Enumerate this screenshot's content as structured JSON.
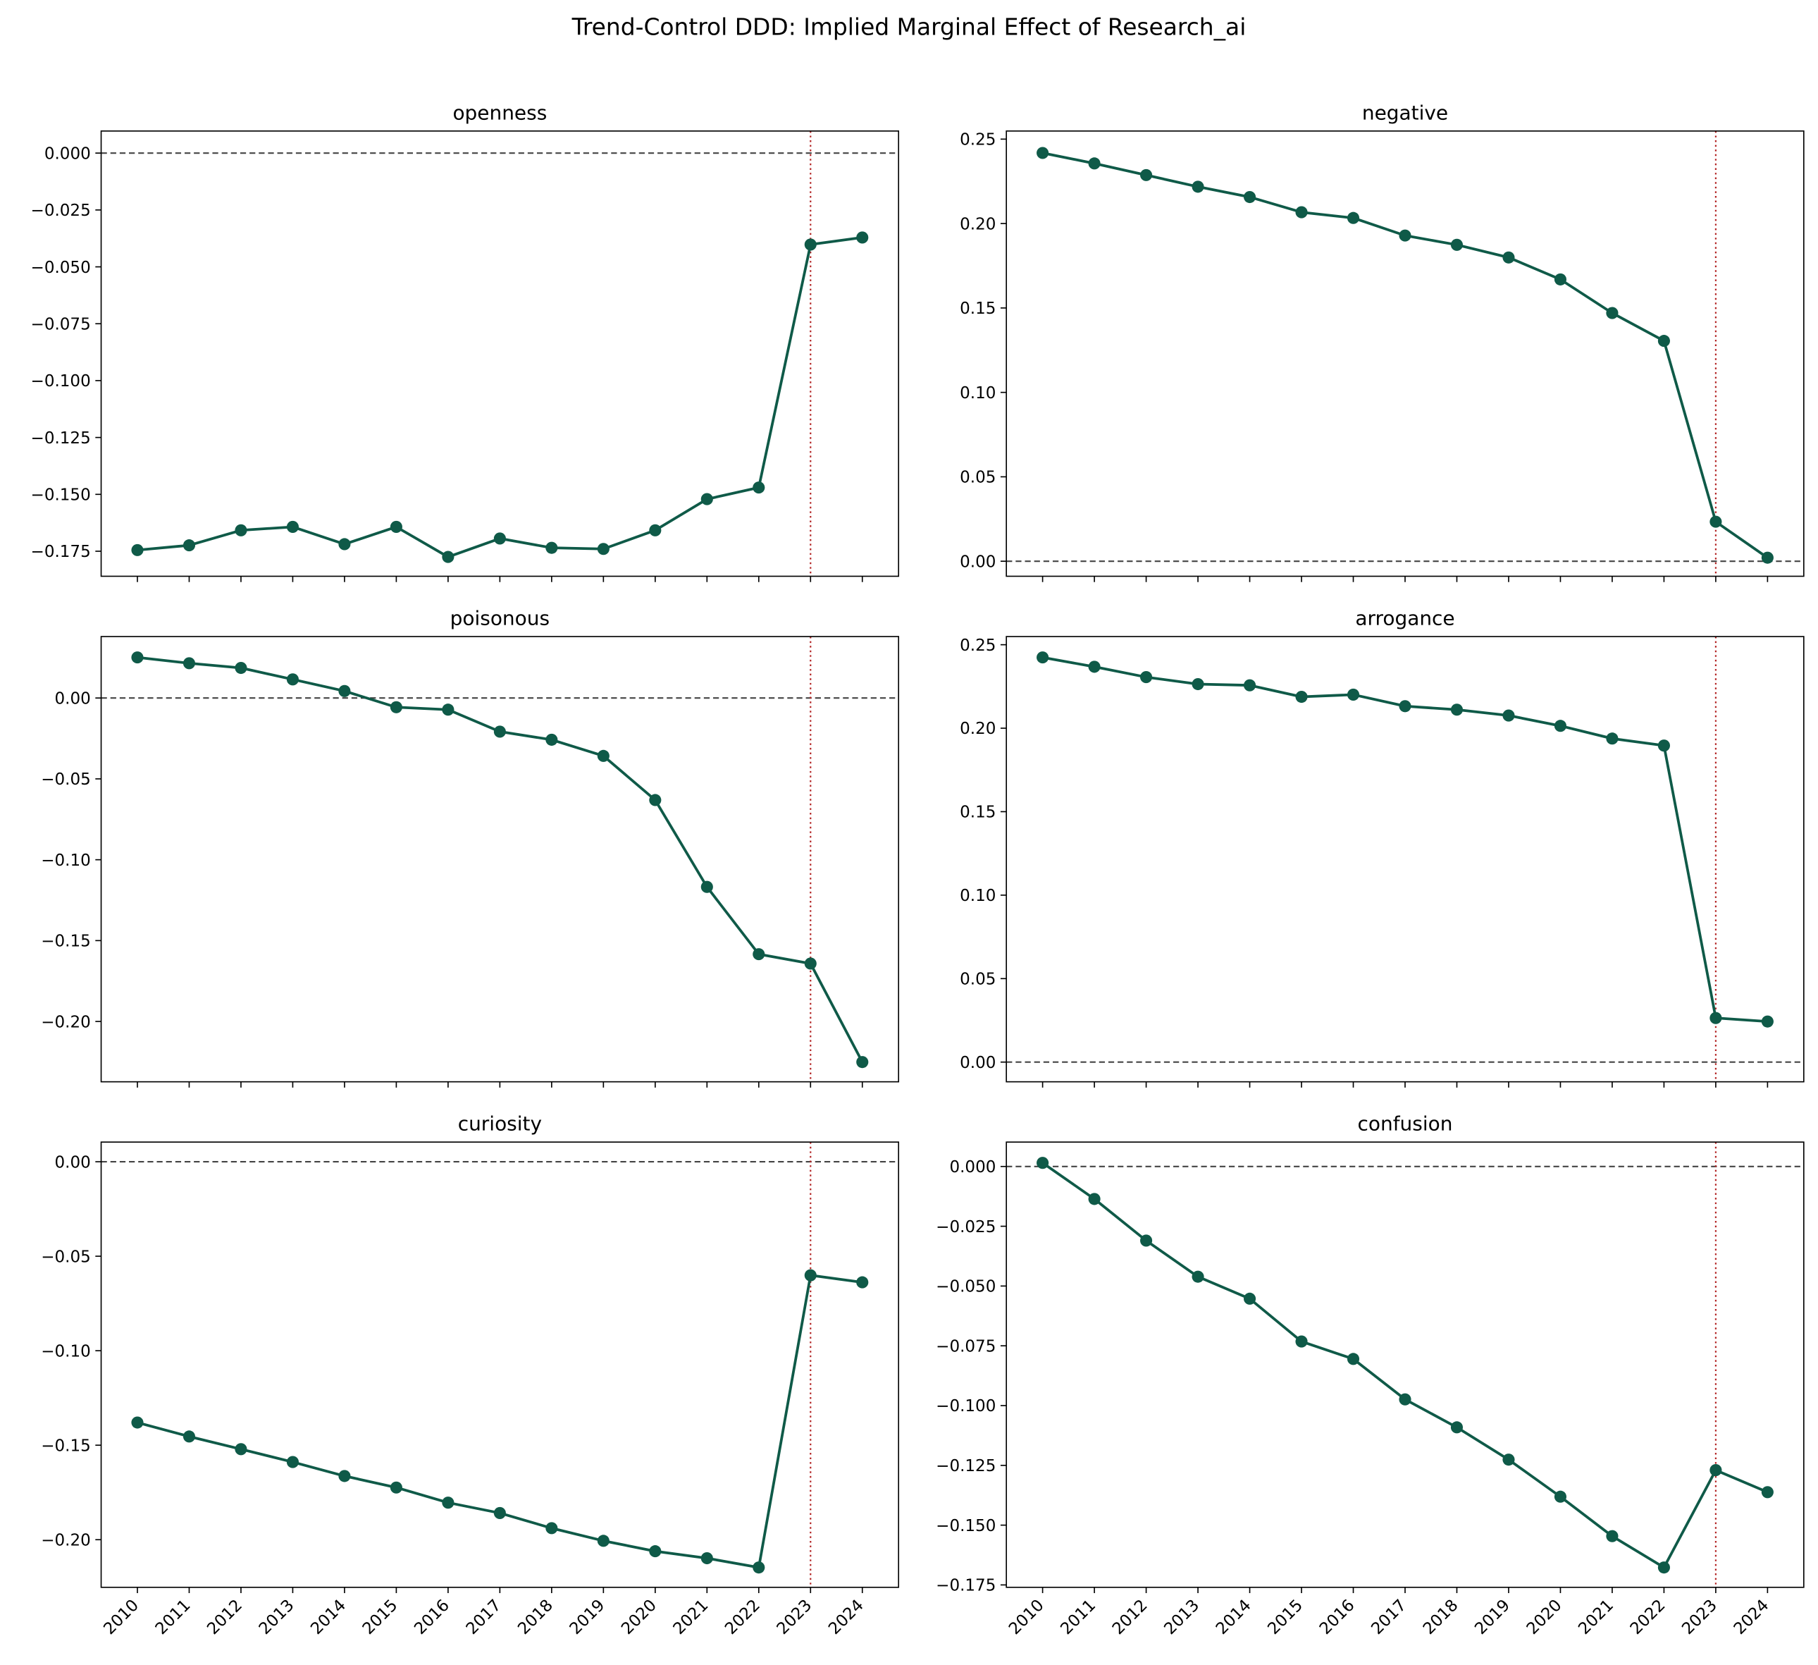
{
  "chart_data": {
    "type": "line",
    "title": "Trend-Control DDD: Implied Marginal Effect of Research_ai",
    "x": [
      2010,
      2011,
      2012,
      2013,
      2014,
      2015,
      2016,
      2017,
      2018,
      2019,
      2020,
      2021,
      2022,
      2023,
      2024
    ],
    "xlim": [
      2009.3,
      2024.7
    ],
    "xticks": [
      2010,
      2011,
      2012,
      2013,
      2014,
      2015,
      2016,
      2017,
      2018,
      2019,
      2020,
      2021,
      2022,
      2023,
      2024
    ],
    "color": "#0f5a48",
    "hline": 0,
    "vline": 2023,
    "vline_color": "#b22222",
    "panels": [
      {
        "title": "openness",
        "values": [
          -0.1745,
          -0.1724,
          -0.1658,
          -0.1643,
          -0.1719,
          -0.1643,
          -0.1775,
          -0.1694,
          -0.1735,
          -0.174,
          -0.1658,
          -0.1521,
          -0.147,
          -0.0402,
          -0.0371
        ],
        "ylim": [
          -0.186,
          0.0097
        ],
        "yticks": [
          {
            "value": 0,
            "label": "0.000"
          },
          {
            "value": -0.025,
            "label": "−0.025"
          },
          {
            "value": -0.05,
            "label": "−0.050"
          },
          {
            "value": -0.075,
            "label": "−0.075"
          },
          {
            "value": -0.1,
            "label": "−0.100"
          },
          {
            "value": -0.125,
            "label": "−0.125"
          },
          {
            "value": -0.15,
            "label": "−0.150"
          },
          {
            "value": -0.175,
            "label": "−0.175"
          }
        ]
      },
      {
        "title": "negative",
        "values": [
          0.2418,
          0.2356,
          0.2287,
          0.2218,
          0.2157,
          0.2067,
          0.2033,
          0.1929,
          0.1874,
          0.1799,
          0.1669,
          0.147,
          0.1305,
          0.0234,
          0.0021
        ],
        "ylim": [
          -0.0089,
          0.2548
        ],
        "yticks": [
          {
            "value": 0,
            "label": "0.00"
          },
          {
            "value": 0.05,
            "label": "0.05"
          },
          {
            "value": 0.1,
            "label": "0.10"
          },
          {
            "value": 0.15,
            "label": "0.15"
          },
          {
            "value": 0.2,
            "label": "0.20"
          },
          {
            "value": 0.25,
            "label": "0.25"
          }
        ]
      },
      {
        "title": "poisonous",
        "values": [
          0.0251,
          0.0215,
          0.0186,
          0.0115,
          0.0043,
          -0.0057,
          -0.0072,
          -0.0208,
          -0.0258,
          -0.0358,
          -0.0631,
          -0.1168,
          -0.1584,
          -0.1642,
          -0.2251
        ],
        "ylim": [
          -0.2373,
          0.038
        ],
        "yticks": [
          {
            "value": 0,
            "label": "0.00"
          },
          {
            "value": -0.05,
            "label": "−0.05"
          },
          {
            "value": -0.1,
            "label": "−0.10"
          },
          {
            "value": -0.15,
            "label": "−0.15"
          },
          {
            "value": -0.2,
            "label": "−0.20"
          }
        ]
      },
      {
        "title": "arrogance",
        "values": [
          0.2424,
          0.2368,
          0.2306,
          0.2264,
          0.2257,
          0.2188,
          0.2201,
          0.2132,
          0.2111,
          0.2076,
          0.2014,
          0.1938,
          0.1896,
          0.0264,
          0.0243
        ],
        "ylim": [
          -0.0118,
          0.2549
        ],
        "yticks": [
          {
            "value": 0,
            "label": "0.00"
          },
          {
            "value": 0.05,
            "label": "0.05"
          },
          {
            "value": 0.1,
            "label": "0.10"
          },
          {
            "value": 0.15,
            "label": "0.15"
          },
          {
            "value": 0.2,
            "label": "0.20"
          },
          {
            "value": 0.25,
            "label": "0.25"
          }
        ]
      },
      {
        "title": "curiosity",
        "values": [
          -0.138,
          -0.1454,
          -0.1521,
          -0.1589,
          -0.1663,
          -0.1724,
          -0.1804,
          -0.1859,
          -0.1939,
          -0.2006,
          -0.2061,
          -0.2098,
          -0.2147,
          -0.0601,
          -0.0638
        ],
        "ylim": [
          -0.2252,
          0.0104
        ],
        "yticks": [
          {
            "value": 0,
            "label": "0.00"
          },
          {
            "value": -0.05,
            "label": "−0.05"
          },
          {
            "value": -0.1,
            "label": "−0.10"
          },
          {
            "value": -0.15,
            "label": "−0.15"
          },
          {
            "value": -0.2,
            "label": "−0.20"
          }
        ]
      },
      {
        "title": "confusion",
        "values": [
          0.0015,
          -0.0136,
          -0.031,
          -0.0461,
          -0.0553,
          -0.0732,
          -0.0805,
          -0.0974,
          -0.1091,
          -0.1226,
          -0.1381,
          -0.1546,
          -0.1677,
          -0.127,
          -0.1362
        ],
        "ylim": [
          -0.176,
          0.0102
        ],
        "yticks": [
          {
            "value": 0,
            "label": "0.000"
          },
          {
            "value": -0.025,
            "label": "−0.025"
          },
          {
            "value": -0.05,
            "label": "−0.050"
          },
          {
            "value": -0.075,
            "label": "−0.075"
          },
          {
            "value": -0.1,
            "label": "−0.100"
          },
          {
            "value": -0.125,
            "label": "−0.125"
          },
          {
            "value": -0.15,
            "label": "−0.150"
          },
          {
            "value": -0.175,
            "label": "−0.175"
          }
        ]
      }
    ]
  }
}
